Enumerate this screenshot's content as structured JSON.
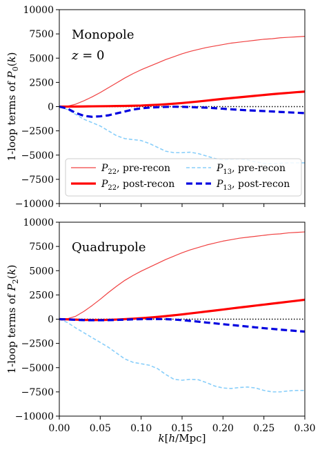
{
  "chart_data": [
    {
      "type": "line",
      "panel": "top",
      "title": "",
      "xlabel": "",
      "ylabel": "1-loop terms of P_0(k)",
      "xlim": [
        0.0,
        0.3
      ],
      "ylim": [
        -10000,
        10000
      ],
      "xticks": [
        0.0,
        0.05,
        0.1,
        0.15,
        0.2,
        0.25,
        0.3
      ],
      "xtick_labels_shown": false,
      "yticks": [
        -10000,
        -7500,
        -5000,
        -2500,
        0,
        2500,
        5000,
        7500,
        10000
      ],
      "ytick_labels": [
        "−10000",
        "−7500",
        "−5000",
        "−2500",
        "0",
        "2500",
        "5000",
        "7500",
        "10000"
      ],
      "annotations": [
        "Monopole",
        "z = 0"
      ],
      "legend_position": "lower-left",
      "legend_columns": 2,
      "zero_line": {
        "style": "dotted",
        "color": "#000000"
      },
      "x": [
        0.0,
        0.01,
        0.02,
        0.03,
        0.04,
        0.05,
        0.06,
        0.07,
        0.08,
        0.09,
        0.1,
        0.11,
        0.12,
        0.13,
        0.14,
        0.15,
        0.16,
        0.17,
        0.18,
        0.19,
        0.2,
        0.21,
        0.22,
        0.23,
        0.24,
        0.25,
        0.26,
        0.27,
        0.28,
        0.29,
        0.3
      ],
      "series": [
        {
          "name": "P_22, pre-recon",
          "color": "#f04040",
          "width": 1.2,
          "dash": "none",
          "values": [
            0,
            50,
            250,
            600,
            1000,
            1450,
            1950,
            2450,
            2950,
            3400,
            3800,
            4150,
            4500,
            4850,
            5150,
            5450,
            5700,
            5900,
            6100,
            6250,
            6400,
            6550,
            6650,
            6750,
            6850,
            6950,
            7000,
            7100,
            7150,
            7200,
            7250
          ]
        },
        {
          "name": "P_22, post-recon",
          "color": "#ff0000",
          "width": 3.2,
          "dash": "none",
          "values": [
            0,
            5,
            10,
            20,
            30,
            40,
            50,
            60,
            70,
            90,
            110,
            150,
            190,
            240,
            300,
            370,
            450,
            530,
            620,
            710,
            800,
            880,
            960,
            1040,
            1120,
            1200,
            1280,
            1350,
            1420,
            1490,
            1550
          ]
        },
        {
          "name": "P_13, pre-recon",
          "color": "#87cefa",
          "width": 1.6,
          "dash": "5,3",
          "values": [
            0,
            -300,
            -800,
            -1300,
            -1650,
            -2000,
            -2500,
            -3000,
            -3300,
            -3400,
            -3500,
            -3800,
            -4200,
            -4600,
            -4750,
            -4750,
            -4700,
            -4850,
            -5100,
            -5350,
            -5500,
            -5450,
            -5400,
            -5500,
            -5700,
            -5850,
            -5900,
            -5850,
            -5800,
            -5800,
            -5800
          ]
        },
        {
          "name": "P_13, post-recon",
          "color": "#0000e0",
          "width": 3.2,
          "dash": "9,5",
          "values": [
            0,
            -200,
            -650,
            -950,
            -1050,
            -1000,
            -900,
            -700,
            -500,
            -300,
            -180,
            -100,
            -60,
            -30,
            -10,
            -20,
            -50,
            -80,
            -110,
            -160,
            -220,
            -280,
            -330,
            -380,
            -420,
            -460,
            -500,
            -550,
            -590,
            -630,
            -670
          ]
        }
      ]
    },
    {
      "type": "line",
      "panel": "bottom",
      "title": "",
      "xlabel": "k[h/Mpc]",
      "ylabel": "1-loop terms of P_2(k)",
      "xlim": [
        0.0,
        0.3
      ],
      "ylim": [
        -10000,
        10000
      ],
      "xticks": [
        0.0,
        0.05,
        0.1,
        0.15,
        0.2,
        0.25,
        0.3
      ],
      "xtick_labels": [
        "0.00",
        "0.05",
        "0.10",
        "0.15",
        "0.20",
        "0.25",
        "0.30"
      ],
      "yticks": [
        -10000,
        -7500,
        -5000,
        -2500,
        0,
        2500,
        5000,
        7500,
        10000
      ],
      "ytick_labels": [
        "−10000",
        "−7500",
        "−5000",
        "−2500",
        "0",
        "2500",
        "5000",
        "7500",
        "10000"
      ],
      "annotations": [
        "Quadrupole"
      ],
      "zero_line": {
        "style": "dotted",
        "color": "#000000"
      },
      "x": [
        0.0,
        0.01,
        0.02,
        0.03,
        0.04,
        0.05,
        0.06,
        0.07,
        0.08,
        0.09,
        0.1,
        0.11,
        0.12,
        0.13,
        0.14,
        0.15,
        0.16,
        0.17,
        0.18,
        0.19,
        0.2,
        0.21,
        0.22,
        0.23,
        0.24,
        0.25,
        0.26,
        0.27,
        0.28,
        0.29,
        0.3
      ],
      "series": [
        {
          "name": "P_22, pre-recon",
          "color": "#f04040",
          "width": 1.2,
          "dash": "none",
          "values": [
            0,
            50,
            300,
            800,
            1400,
            2050,
            2750,
            3400,
            4000,
            4500,
            4950,
            5350,
            5750,
            6150,
            6500,
            6850,
            7150,
            7400,
            7650,
            7850,
            8050,
            8200,
            8350,
            8450,
            8550,
            8650,
            8750,
            8800,
            8900,
            8950,
            9000
          ]
        },
        {
          "name": "P_22, post-recon",
          "color": "#ff0000",
          "width": 3.2,
          "dash": "none",
          "values": [
            0,
            -20,
            -50,
            -80,
            -90,
            -90,
            -70,
            -40,
            0,
            50,
            100,
            160,
            230,
            310,
            400,
            490,
            590,
            690,
            790,
            890,
            990,
            1100,
            1200,
            1300,
            1400,
            1500,
            1600,
            1700,
            1800,
            1900,
            2000
          ]
        },
        {
          "name": "P_13, pre-recon",
          "color": "#87cefa",
          "width": 1.6,
          "dash": "5,3",
          "values": [
            0,
            -350,
            -900,
            -1400,
            -1900,
            -2400,
            -2900,
            -3500,
            -4100,
            -4450,
            -4600,
            -4750,
            -5100,
            -5700,
            -6200,
            -6300,
            -6200,
            -6250,
            -6550,
            -6900,
            -7100,
            -7150,
            -7050,
            -7000,
            -7100,
            -7350,
            -7500,
            -7500,
            -7400,
            -7350,
            -7350
          ]
        },
        {
          "name": "P_13, post-recon",
          "color": "#0000e0",
          "width": 3.2,
          "dash": "9,5",
          "values": [
            0,
            -30,
            -70,
            -100,
            -110,
            -110,
            -100,
            -80,
            -50,
            -20,
            0,
            10,
            10,
            0,
            -40,
            -100,
            -180,
            -260,
            -350,
            -430,
            -520,
            -600,
            -680,
            -760,
            -850,
            -930,
            -1000,
            -1080,
            -1150,
            -1220,
            -1280
          ]
        }
      ]
    }
  ],
  "legend_entries": [
    {
      "symbol": "P",
      "sub": "22",
      "suffix": ", pre-recon"
    },
    {
      "symbol": "P",
      "sub": "13",
      "suffix": ", pre-recon"
    },
    {
      "symbol": "P",
      "sub": "22",
      "suffix": ", post-recon"
    },
    {
      "symbol": "P",
      "sub": "13",
      "suffix": ", post-recon"
    }
  ]
}
